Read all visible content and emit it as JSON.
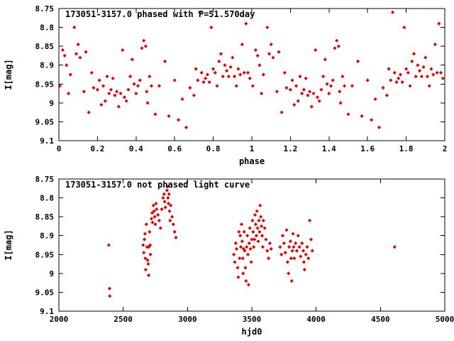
{
  "figure": {
    "background": "#ffffff",
    "text_color": "#000000",
    "marker_color": "#e60000",
    "marker_shape": "diamond"
  },
  "chart_data": [
    {
      "type": "scatter",
      "title": "173051-3157.0 phased with P=51.570day",
      "xlabel": "phase",
      "ylabel": "I[mag]",
      "xlim": [
        0,
        2
      ],
      "ylim": [
        8.75,
        9.1
      ],
      "y_inverted": true,
      "grid": false,
      "legend": "none",
      "xtick_values": [
        0,
        0.2,
        0.4,
        0.6,
        0.8,
        1,
        1.2,
        1.4,
        1.6,
        1.8,
        2
      ],
      "xtick_labels": [
        "0",
        "0.2",
        "0.4",
        "0.6",
        "0.8",
        "1",
        "1.2",
        "1.4",
        "1.6",
        "1.8",
        "2"
      ],
      "ytick_values": [
        8.75,
        8.8,
        8.85,
        8.9,
        8.95,
        9,
        9.05,
        9.1
      ],
      "ytick_labels": [
        "8.75",
        "8.8",
        "8.85",
        "8.9",
        "8.95",
        "9",
        "9.05",
        "9.1"
      ],
      "points": [
        [
          0.005,
          8.955
        ],
        [
          0.02,
          8.86
        ],
        [
          0.03,
          8.875
        ],
        [
          0.04,
          8.9
        ],
        [
          0.05,
          8.975
        ],
        [
          0.06,
          8.925
        ],
        [
          0.08,
          8.8
        ],
        [
          0.09,
          8.87
        ],
        [
          0.1,
          8.845
        ],
        [
          0.11,
          8.88
        ],
        [
          0.13,
          8.97
        ],
        [
          0.14,
          8.865
        ],
        [
          0.155,
          9.025
        ],
        [
          0.17,
          8.92
        ],
        [
          0.18,
          8.96
        ],
        [
          0.2,
          8.965
        ],
        [
          0.21,
          8.94
        ],
        [
          0.22,
          9.005
        ],
        [
          0.23,
          8.955
        ],
        [
          0.24,
          8.995
        ],
        [
          0.25,
          8.93
        ],
        [
          0.26,
          8.975
        ],
        [
          0.27,
          8.965
        ],
        [
          0.28,
          8.935
        ],
        [
          0.29,
          8.98
        ],
        [
          0.3,
          8.97
        ],
        [
          0.31,
          9.01
        ],
        [
          0.32,
          8.975
        ],
        [
          0.33,
          8.86
        ],
        [
          0.34,
          8.985
        ],
        [
          0.35,
          8.995
        ],
        [
          0.36,
          8.965
        ],
        [
          0.37,
          8.93
        ],
        [
          0.38,
          8.885
        ],
        [
          0.39,
          8.95
        ],
        [
          0.4,
          8.975
        ],
        [
          0.41,
          8.955
        ],
        [
          0.42,
          8.94
        ],
        [
          0.43,
          8.855
        ],
        [
          0.44,
          8.835
        ],
        [
          0.45,
          8.85
        ],
        [
          0.455,
          8.97
        ],
        [
          0.46,
          9.0
        ],
        [
          0.47,
          8.93
        ],
        [
          0.48,
          8.955
        ],
        [
          0.5,
          9.03
        ],
        [
          0.52,
          8.955
        ],
        [
          0.55,
          8.89
        ],
        [
          0.57,
          9.035
        ],
        [
          0.6,
          8.94
        ],
        [
          0.62,
          9.045
        ],
        [
          0.64,
          8.99
        ],
        [
          0.66,
          9.065
        ],
        [
          0.68,
          8.96
        ],
        [
          0.7,
          8.98
        ],
        [
          0.71,
          8.91
        ],
        [
          0.72,
          8.94
        ],
        [
          0.73,
          8.76
        ],
        [
          0.74,
          8.92
        ],
        [
          0.75,
          8.945
        ],
        [
          0.76,
          8.935
        ],
        [
          0.77,
          8.925
        ],
        [
          0.78,
          8.945
        ],
        [
          0.79,
          8.8
        ],
        [
          0.8,
          8.91
        ],
        [
          0.81,
          8.92
        ],
        [
          0.82,
          8.955
        ],
        [
          0.83,
          8.89
        ],
        [
          0.84,
          8.87
        ],
        [
          0.85,
          8.93
        ],
        [
          0.86,
          8.9
        ],
        [
          0.87,
          8.915
        ],
        [
          0.88,
          8.93
        ],
        [
          0.89,
          8.905
        ],
        [
          0.9,
          8.88
        ],
        [
          0.91,
          8.93
        ],
        [
          0.92,
          8.955
        ],
        [
          0.93,
          8.91
        ],
        [
          0.94,
          8.925
        ],
        [
          0.95,
          8.845
        ],
        [
          0.96,
          8.92
        ],
        [
          0.97,
          8.79
        ],
        [
          0.98,
          8.92
        ],
        [
          0.99,
          8.935
        ],
        [
          1.005,
          8.955
        ],
        [
          1.02,
          8.86
        ],
        [
          1.03,
          8.875
        ],
        [
          1.04,
          8.9
        ],
        [
          1.05,
          8.975
        ],
        [
          1.06,
          8.925
        ],
        [
          1.08,
          8.8
        ],
        [
          1.09,
          8.87
        ],
        [
          1.1,
          8.845
        ],
        [
          1.11,
          8.88
        ],
        [
          1.13,
          8.97
        ],
        [
          1.14,
          8.865
        ],
        [
          1.155,
          9.025
        ],
        [
          1.17,
          8.92
        ],
        [
          1.18,
          8.96
        ],
        [
          1.2,
          8.965
        ],
        [
          1.21,
          8.94
        ],
        [
          1.22,
          9.005
        ],
        [
          1.23,
          8.955
        ],
        [
          1.24,
          8.995
        ],
        [
          1.25,
          8.93
        ],
        [
          1.26,
          8.975
        ],
        [
          1.27,
          8.965
        ],
        [
          1.28,
          8.935
        ],
        [
          1.29,
          8.98
        ],
        [
          1.3,
          8.97
        ],
        [
          1.31,
          9.01
        ],
        [
          1.32,
          8.975
        ],
        [
          1.33,
          8.86
        ],
        [
          1.34,
          8.985
        ],
        [
          1.35,
          8.995
        ],
        [
          1.36,
          8.965
        ],
        [
          1.37,
          8.93
        ],
        [
          1.38,
          8.885
        ],
        [
          1.39,
          8.95
        ],
        [
          1.4,
          8.975
        ],
        [
          1.41,
          8.955
        ],
        [
          1.42,
          8.94
        ],
        [
          1.43,
          8.855
        ],
        [
          1.44,
          8.835
        ],
        [
          1.45,
          8.85
        ],
        [
          1.455,
          8.97
        ],
        [
          1.46,
          9.0
        ],
        [
          1.47,
          8.93
        ],
        [
          1.48,
          8.955
        ],
        [
          1.5,
          9.03
        ],
        [
          1.52,
          8.955
        ],
        [
          1.55,
          8.89
        ],
        [
          1.57,
          9.035
        ],
        [
          1.6,
          8.94
        ],
        [
          1.62,
          9.045
        ],
        [
          1.64,
          8.99
        ],
        [
          1.66,
          9.065
        ],
        [
          1.68,
          8.96
        ],
        [
          1.7,
          8.98
        ],
        [
          1.71,
          8.91
        ],
        [
          1.72,
          8.94
        ],
        [
          1.73,
          8.76
        ],
        [
          1.74,
          8.92
        ],
        [
          1.75,
          8.945
        ],
        [
          1.76,
          8.935
        ],
        [
          1.77,
          8.925
        ],
        [
          1.78,
          8.945
        ],
        [
          1.79,
          8.8
        ],
        [
          1.8,
          8.91
        ],
        [
          1.81,
          8.92
        ],
        [
          1.82,
          8.955
        ],
        [
          1.83,
          8.89
        ],
        [
          1.84,
          8.87
        ],
        [
          1.85,
          8.93
        ],
        [
          1.86,
          8.9
        ],
        [
          1.87,
          8.915
        ],
        [
          1.88,
          8.93
        ],
        [
          1.89,
          8.905
        ],
        [
          1.9,
          8.88
        ],
        [
          1.91,
          8.93
        ],
        [
          1.92,
          8.955
        ],
        [
          1.93,
          8.91
        ],
        [
          1.94,
          8.925
        ],
        [
          1.95,
          8.845
        ],
        [
          1.96,
          8.92
        ],
        [
          1.97,
          8.79
        ],
        [
          1.98,
          8.92
        ],
        [
          1.99,
          8.935
        ]
      ]
    },
    {
      "type": "scatter",
      "title": "173051-3157.0 not phased light curve",
      "xlabel": "hjd0",
      "ylabel": "I[mag]",
      "xlim": [
        2000,
        5000
      ],
      "ylim": [
        8.75,
        9.1
      ],
      "y_inverted": true,
      "grid": false,
      "legend": "none",
      "xtick_values": [
        2000,
        2500,
        3000,
        3500,
        4000,
        4500,
        5000
      ],
      "xtick_labels": [
        "2000",
        "2500",
        "3000",
        "3500",
        "4000",
        "4500",
        "5000"
      ],
      "ytick_values": [
        8.75,
        8.8,
        8.85,
        8.9,
        8.95,
        9,
        9.05,
        9.1
      ],
      "ytick_labels": [
        "8.75",
        "8.8",
        "8.85",
        "8.9",
        "8.95",
        "9",
        "9.05",
        "9.1"
      ],
      "points": [
        [
          2388,
          8.925
        ],
        [
          2394,
          9.04
        ],
        [
          2396,
          9.06
        ],
        [
          2655,
          8.925
        ],
        [
          2660,
          8.945
        ],
        [
          2665,
          8.91
        ],
        [
          2670,
          8.895
        ],
        [
          2672,
          8.96
        ],
        [
          2675,
          8.99
        ],
        [
          2680,
          8.87
        ],
        [
          2685,
          8.93
        ],
        [
          2690,
          8.965
        ],
        [
          2695,
          8.975
        ],
        [
          2698,
          9.005
        ],
        [
          2700,
          8.93
        ],
        [
          2705,
          8.89
        ],
        [
          2710,
          8.925
        ],
        [
          2712,
          8.95
        ],
        [
          2720,
          8.855
        ],
        [
          2725,
          8.84
        ],
        [
          2728,
          8.865
        ],
        [
          2735,
          8.82
        ],
        [
          2740,
          8.835
        ],
        [
          2745,
          8.85
        ],
        [
          2750,
          8.87
        ],
        [
          2755,
          8.815
        ],
        [
          2760,
          8.83
        ],
        [
          2770,
          8.845
        ],
        [
          2780,
          8.86
        ],
        [
          2790,
          8.88
        ],
        [
          2800,
          8.83
        ],
        [
          2810,
          8.8
        ],
        [
          2818,
          8.79
        ],
        [
          2822,
          8.81
        ],
        [
          2828,
          8.825
        ],
        [
          2840,
          8.78
        ],
        [
          2845,
          8.77
        ],
        [
          2848,
          8.8
        ],
        [
          2852,
          8.815
        ],
        [
          2856,
          8.79
        ],
        [
          2860,
          8.835
        ],
        [
          2865,
          8.86
        ],
        [
          2870,
          8.82
        ],
        [
          2880,
          8.85
        ],
        [
          2890,
          8.87
        ],
        [
          2900,
          8.89
        ],
        [
          2910,
          8.905
        ],
        [
          3360,
          8.95
        ],
        [
          3368,
          8.97
        ],
        [
          3375,
          8.92
        ],
        [
          3382,
          8.935
        ],
        [
          3390,
          8.985
        ],
        [
          3395,
          9.01
        ],
        [
          3400,
          8.89
        ],
        [
          3405,
          8.96
        ],
        [
          3410,
          8.9
        ],
        [
          3415,
          8.93
        ],
        [
          3420,
          8.87
        ],
        [
          3425,
          8.915
        ],
        [
          3430,
          8.96
        ],
        [
          3432,
          9.0
        ],
        [
          3436,
          8.935
        ],
        [
          3440,
          8.89
        ],
        [
          3445,
          8.94
        ],
        [
          3450,
          8.985
        ],
        [
          3455,
          9.02
        ],
        [
          3460,
          8.93
        ],
        [
          3465,
          8.9
        ],
        [
          3470,
          8.95
        ],
        [
          3475,
          9.03
        ],
        [
          3480,
          8.92
        ],
        [
          3485,
          8.88
        ],
        [
          3490,
          8.935
        ],
        [
          3495,
          8.97
        ],
        [
          3500,
          8.91
        ],
        [
          3505,
          8.86
        ],
        [
          3510,
          8.89
        ],
        [
          3515,
          8.93
        ],
        [
          3520,
          8.91
        ],
        [
          3525,
          8.845
        ],
        [
          3530,
          8.87
        ],
        [
          3535,
          8.9
        ],
        [
          3540,
          8.835
        ],
        [
          3545,
          8.88
        ],
        [
          3550,
          8.915
        ],
        [
          3555,
          8.86
        ],
        [
          3560,
          8.89
        ],
        [
          3565,
          8.82
        ],
        [
          3570,
          8.85
        ],
        [
          3575,
          8.875
        ],
        [
          3580,
          8.9
        ],
        [
          3585,
          8.93
        ],
        [
          3590,
          8.86
        ],
        [
          3600,
          8.88
        ],
        [
          3610,
          8.91
        ],
        [
          3620,
          8.94
        ],
        [
          3630,
          8.96
        ],
        [
          3640,
          8.92
        ],
        [
          3650,
          8.935
        ],
        [
          3720,
          8.93
        ],
        [
          3730,
          8.95
        ],
        [
          3740,
          8.9
        ],
        [
          3750,
          8.92
        ],
        [
          3760,
          8.945
        ],
        [
          3770,
          8.885
        ],
        [
          3778,
          8.97
        ],
        [
          3785,
          9.0
        ],
        [
          3790,
          8.93
        ],
        [
          3800,
          8.915
        ],
        [
          3805,
          8.96
        ],
        [
          3810,
          9.02
        ],
        [
          3815,
          8.94
        ],
        [
          3820,
          8.895
        ],
        [
          3825,
          8.93
        ],
        [
          3830,
          8.96
        ],
        [
          3840,
          8.92
        ],
        [
          3850,
          8.94
        ],
        [
          3860,
          8.9
        ],
        [
          3870,
          8.93
        ],
        [
          3880,
          8.955
        ],
        [
          3890,
          8.92
        ],
        [
          3900,
          8.94
        ],
        [
          3905,
          8.97
        ],
        [
          3910,
          8.99
        ],
        [
          3920,
          8.95
        ],
        [
          3930,
          8.93
        ],
        [
          3940,
          8.96
        ],
        [
          3950,
          8.86
        ],
        [
          3960,
          8.91
        ],
        [
          3970,
          8.94
        ],
        [
          4610,
          8.93
        ]
      ]
    }
  ]
}
